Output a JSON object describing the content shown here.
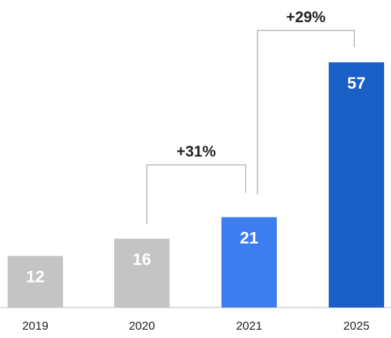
{
  "chart_data": {
    "type": "bar",
    "title": "",
    "xlabel": "",
    "ylabel": "",
    "categories": [
      "2019",
      "2020",
      "2021",
      "2025"
    ],
    "values": [
      12,
      16,
      21,
      57
    ],
    "data_labels": [
      "12",
      "16",
      "21",
      "57"
    ],
    "ylim": [
      0,
      57
    ],
    "grid": false,
    "legend": "none",
    "colors": [
      "#c4c4c4",
      "#c4c4c4",
      "#3d7df0",
      "#1a5fc6"
    ],
    "annotations": [
      {
        "from": "2020",
        "to": "2021",
        "label": "+31%"
      },
      {
        "from": "2021",
        "to": "2025",
        "label": "+29%"
      }
    ]
  }
}
